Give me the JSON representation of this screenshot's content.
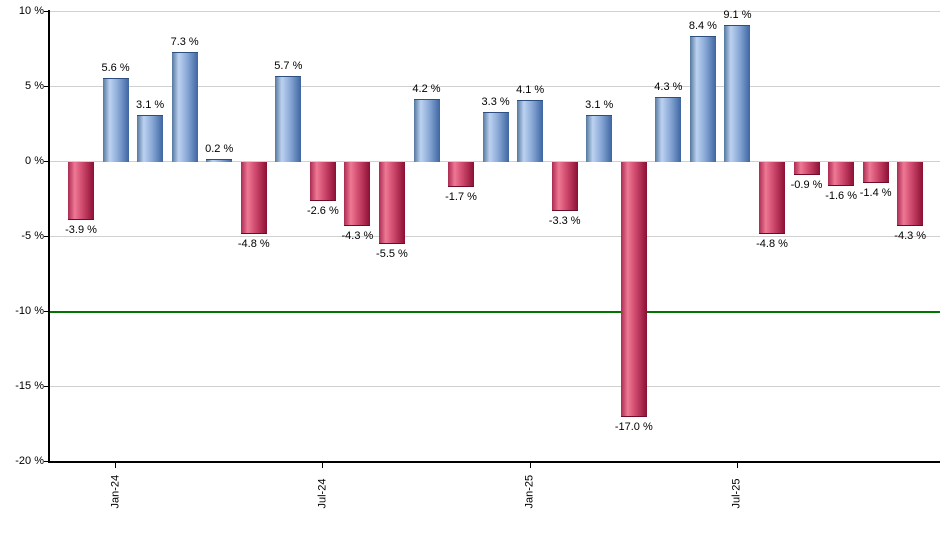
{
  "chart_data": {
    "type": "bar",
    "title": "",
    "unit": "%",
    "values": [
      -3.9,
      5.6,
      3.1,
      7.3,
      0.2,
      -4.8,
      5.7,
      -2.6,
      -4.3,
      -5.5,
      4.2,
      -1.7,
      3.3,
      4.1,
      -3.3,
      3.1,
      -17.0,
      4.3,
      8.4,
      9.1,
      -4.8,
      -0.9,
      -1.6,
      -1.4,
      -4.3
    ],
    "value_labels": [
      "-3.9 %",
      "5.6 %",
      "3.1 %",
      "7.3 %",
      "0.2 %",
      "-4.8 %",
      "5.7 %",
      "-2.6 %",
      "-4.3 %",
      "-5.5 %",
      "4.2 %",
      "-1.7 %",
      "3.3 %",
      "4.1 %",
      "-3.3 %",
      "3.1 %",
      "-17.0 %",
      "4.3 %",
      "8.4 %",
      "9.1 %",
      "-4.8 %",
      "-0.9 %",
      "-1.6 %",
      "-1.4 %",
      "-4.3 %"
    ],
    "y_ticks": [
      {
        "value": 10,
        "label": "10 %"
      },
      {
        "value": 5,
        "label": "5 %"
      },
      {
        "value": 0,
        "label": "0 %"
      },
      {
        "value": -5,
        "label": "-5 %"
      },
      {
        "value": -10,
        "label": "-10 %"
      },
      {
        "value": -15,
        "label": "-15 %"
      },
      {
        "value": -20,
        "label": "-20 %"
      }
    ],
    "x_ticks": [
      {
        "bar_index": 1,
        "label": "Jan-24"
      },
      {
        "bar_index": 7,
        "label": "Jul-24"
      },
      {
        "bar_index": 13,
        "label": "Jan-25"
      },
      {
        "bar_index": 19,
        "label": "Jul-25"
      }
    ],
    "ylim": [
      -20,
      10
    ],
    "grid": true,
    "legend": "none",
    "reference_line": {
      "value": -10,
      "color": "#007500"
    },
    "colors": {
      "positive_bar_gradient": [
        "#54779f",
        "#bdd2f0",
        "#8fadda",
        "#3e66a2"
      ],
      "negative_bar_gradient": [
        "#aa2b52",
        "#ee7894",
        "#cf4a6e",
        "#8c0f34"
      ],
      "grid_color": "#d0d0d0",
      "axis_color": "#000000",
      "label_color": "#000000"
    }
  }
}
